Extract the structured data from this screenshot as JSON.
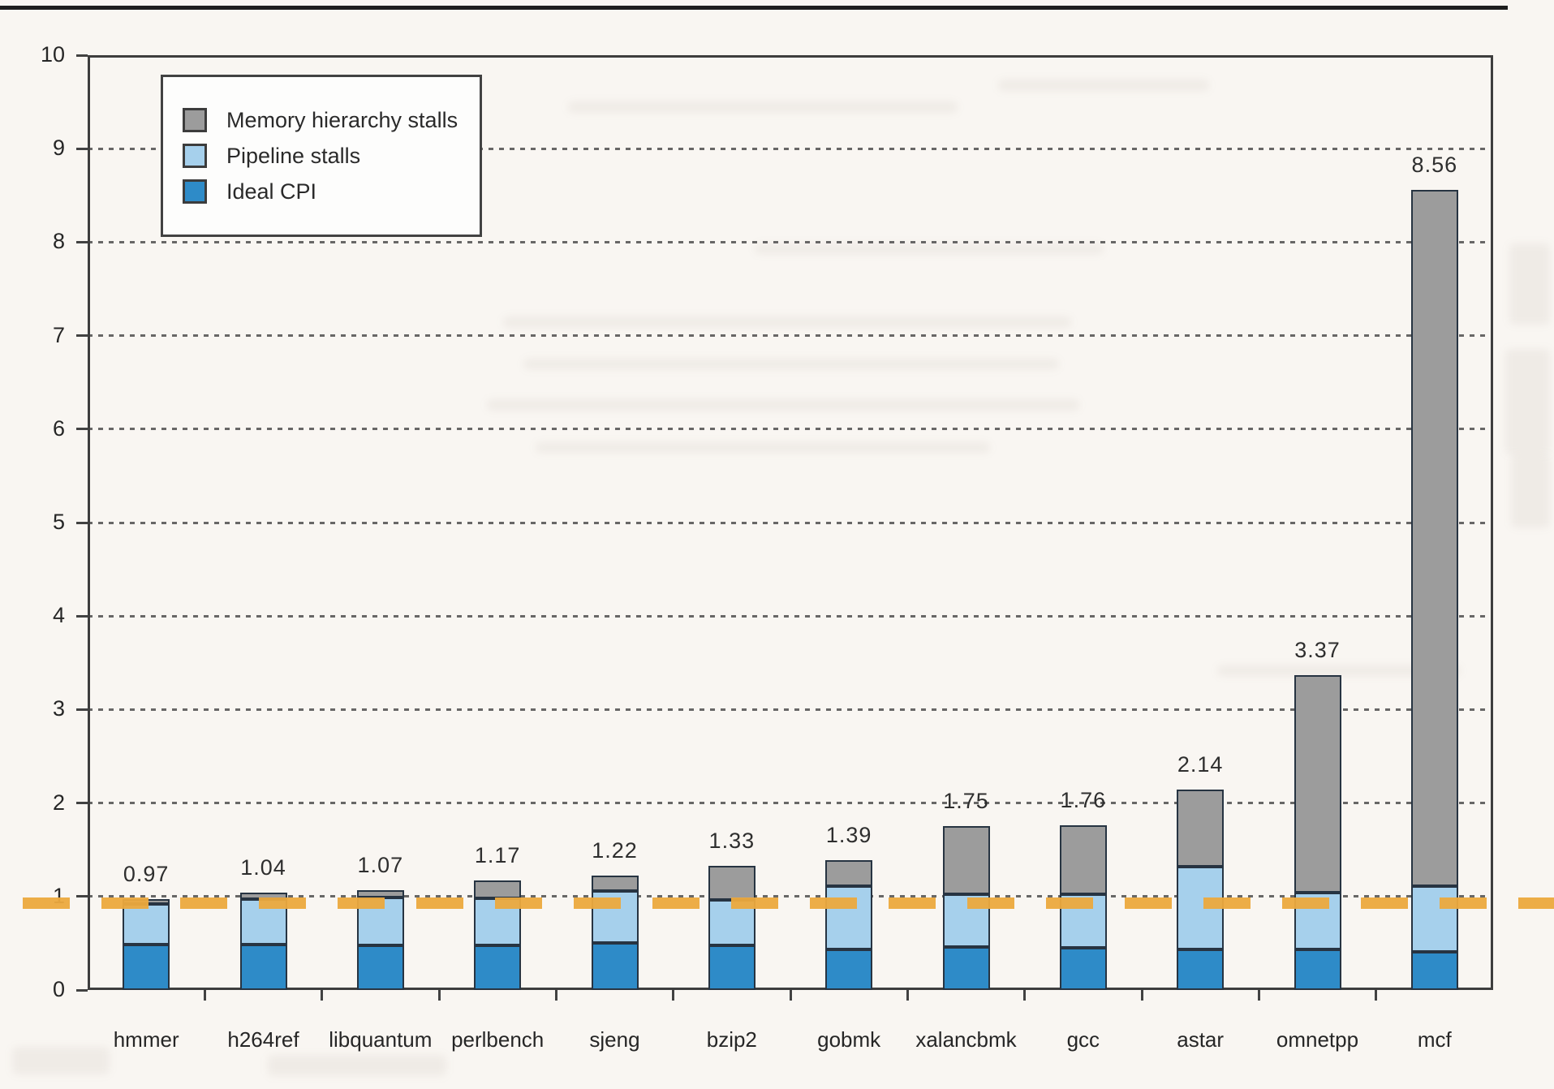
{
  "legend": {
    "items": [
      {
        "label": "Memory hierarchy stalls",
        "color": "#9c9c9c"
      },
      {
        "label": "Pipeline stalls",
        "color": "#a6d0ec"
      },
      {
        "label": "Ideal CPI",
        "color": "#2e8bc8"
      }
    ]
  },
  "chart_data": {
    "type": "bar",
    "stacked": true,
    "title": "",
    "xlabel": "",
    "ylabel": "",
    "ylim": [
      0,
      10
    ],
    "yticks": [
      0,
      1,
      2,
      3,
      4,
      5,
      6,
      7,
      8,
      9,
      10
    ],
    "grid": "horizontal-dotted",
    "legend_position": "top-left-inside",
    "categories": [
      "hmmer",
      "h264ref",
      "libquantum",
      "perlbench",
      "sjeng",
      "bzip2",
      "gobmk",
      "xalancbmk",
      "gcc",
      "astar",
      "omnetpp",
      "mcf"
    ],
    "series": [
      {
        "name": "Ideal CPI",
        "color": "#2e8bc8",
        "values": [
          0.49,
          0.49,
          0.48,
          0.48,
          0.5,
          0.48,
          0.43,
          0.46,
          0.45,
          0.43,
          0.43,
          0.41
        ]
      },
      {
        "name": "Pipeline stalls",
        "color": "#a6d0ec",
        "values": [
          0.43,
          0.48,
          0.51,
          0.5,
          0.56,
          0.48,
          0.68,
          0.56,
          0.57,
          0.89,
          0.61,
          0.7
        ]
      },
      {
        "name": "Memory hierarchy stalls",
        "color": "#9c9c9c",
        "values": [
          0.05,
          0.07,
          0.08,
          0.19,
          0.16,
          0.37,
          0.28,
          0.73,
          0.74,
          0.82,
          2.33,
          7.45
        ]
      }
    ],
    "totals": [
      0.97,
      1.04,
      1.07,
      1.17,
      1.22,
      1.33,
      1.39,
      1.75,
      1.76,
      2.14,
      3.37,
      8.56
    ],
    "bar_labels": [
      "0.97",
      "1.04",
      "1.07",
      "1.17",
      "1.22",
      "1.33",
      "1.39",
      "1.75",
      "1.76",
      "2.14",
      "3.37",
      "8.56"
    ],
    "reference_line": {
      "value": 1,
      "style": "dashed",
      "color": "#eca93e"
    }
  }
}
